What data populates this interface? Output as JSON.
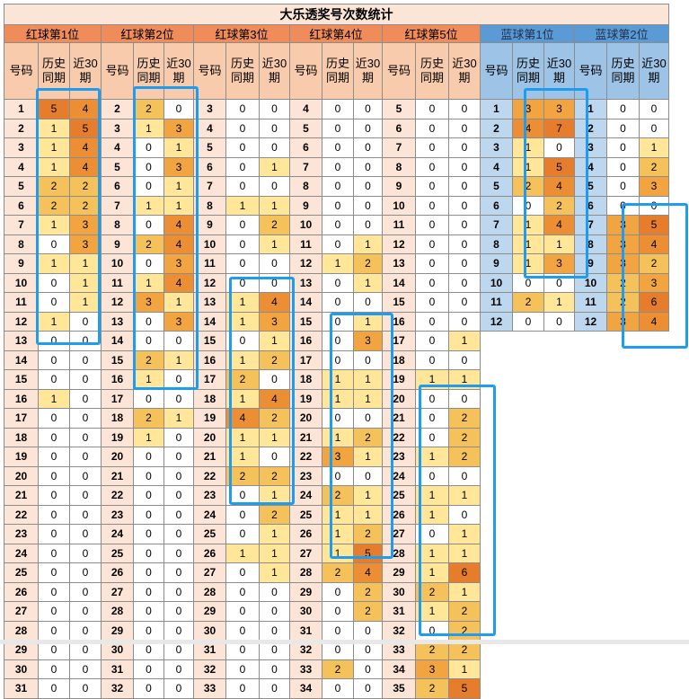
{
  "title": "大乐透奖号次数统计",
  "headers": {
    "code": "号码",
    "hist": "历史同期",
    "recent": "近30期"
  },
  "groups": [
    {
      "label": "红球第1位",
      "kind": "red",
      "rows": [
        [
          1,
          5,
          4
        ],
        [
          2,
          1,
          5
        ],
        [
          3,
          1,
          4
        ],
        [
          4,
          1,
          4
        ],
        [
          5,
          2,
          2
        ],
        [
          6,
          2,
          2
        ],
        [
          7,
          1,
          3
        ],
        [
          8,
          0,
          3
        ],
        [
          9,
          1,
          1
        ],
        [
          10,
          0,
          1
        ],
        [
          11,
          0,
          1
        ],
        [
          12,
          1,
          0
        ],
        [
          13,
          0,
          0
        ],
        [
          14,
          0,
          0
        ],
        [
          15,
          0,
          0
        ],
        [
          16,
          1,
          0
        ],
        [
          17,
          0,
          0
        ],
        [
          18,
          0,
          0
        ],
        [
          19,
          0,
          0
        ],
        [
          20,
          0,
          0
        ],
        [
          21,
          0,
          0
        ],
        [
          22,
          0,
          0
        ],
        [
          23,
          0,
          0
        ],
        [
          24,
          0,
          0
        ],
        [
          25,
          0,
          0
        ],
        [
          26,
          0,
          0
        ],
        [
          27,
          0,
          0
        ],
        [
          28,
          0,
          0
        ],
        [
          29,
          0,
          0
        ],
        [
          30,
          0,
          0
        ],
        [
          31,
          0,
          0
        ]
      ]
    },
    {
      "label": "红球第2位",
      "kind": "red",
      "rows": [
        [
          2,
          2,
          0
        ],
        [
          3,
          1,
          3
        ],
        [
          4,
          0,
          1
        ],
        [
          5,
          0,
          3
        ],
        [
          6,
          0,
          1
        ],
        [
          7,
          1,
          1
        ],
        [
          8,
          0,
          4
        ],
        [
          9,
          2,
          4
        ],
        [
          10,
          0,
          3
        ],
        [
          11,
          1,
          4
        ],
        [
          12,
          3,
          1
        ],
        [
          13,
          0,
          3
        ],
        [
          14,
          0,
          0
        ],
        [
          15,
          2,
          1
        ],
        [
          16,
          1,
          0
        ],
        [
          17,
          0,
          0
        ],
        [
          18,
          2,
          1
        ],
        [
          19,
          1,
          0
        ],
        [
          20,
          0,
          0
        ],
        [
          21,
          0,
          0
        ],
        [
          22,
          0,
          0
        ],
        [
          23,
          0,
          0
        ],
        [
          24,
          0,
          0
        ],
        [
          25,
          0,
          0
        ],
        [
          26,
          0,
          0
        ],
        [
          27,
          0,
          0
        ],
        [
          28,
          0,
          0
        ],
        [
          29,
          0,
          0
        ],
        [
          30,
          0,
          0
        ],
        [
          31,
          0,
          0
        ],
        [
          32,
          0,
          0
        ]
      ]
    },
    {
      "label": "红球第3位",
      "kind": "red",
      "rows": [
        [
          3,
          0,
          0
        ],
        [
          4,
          0,
          0
        ],
        [
          5,
          0,
          0
        ],
        [
          6,
          0,
          1
        ],
        [
          7,
          0,
          0
        ],
        [
          8,
          1,
          1
        ],
        [
          9,
          0,
          2
        ],
        [
          10,
          0,
          1
        ],
        [
          11,
          0,
          0
        ],
        [
          12,
          0,
          0
        ],
        [
          13,
          1,
          4
        ],
        [
          14,
          1,
          3
        ],
        [
          15,
          0,
          1
        ],
        [
          16,
          1,
          2
        ],
        [
          17,
          2,
          0
        ],
        [
          18,
          1,
          4
        ],
        [
          19,
          4,
          2
        ],
        [
          20,
          1,
          1
        ],
        [
          21,
          1,
          0
        ],
        [
          22,
          2,
          2
        ],
        [
          23,
          0,
          1
        ],
        [
          24,
          0,
          2
        ],
        [
          25,
          0,
          1
        ],
        [
          26,
          1,
          1
        ],
        [
          27,
          0,
          1
        ],
        [
          28,
          0,
          0
        ],
        [
          29,
          0,
          0
        ],
        [
          30,
          0,
          0
        ],
        [
          31,
          0,
          0
        ],
        [
          32,
          0,
          0
        ],
        [
          33,
          0,
          0
        ]
      ]
    },
    {
      "label": "红球第4位",
      "kind": "red",
      "rows": [
        [
          4,
          0,
          0
        ],
        [
          5,
          0,
          0
        ],
        [
          6,
          0,
          0
        ],
        [
          7,
          0,
          0
        ],
        [
          8,
          0,
          0
        ],
        [
          9,
          0,
          0
        ],
        [
          10,
          0,
          0
        ],
        [
          11,
          0,
          1
        ],
        [
          12,
          1,
          2
        ],
        [
          13,
          0,
          1
        ],
        [
          14,
          0,
          0
        ],
        [
          15,
          0,
          1
        ],
        [
          16,
          0,
          3
        ],
        [
          17,
          0,
          0
        ],
        [
          18,
          1,
          1
        ],
        [
          19,
          1,
          1
        ],
        [
          20,
          0,
          0
        ],
        [
          21,
          1,
          2
        ],
        [
          22,
          3,
          1
        ],
        [
          23,
          0,
          0
        ],
        [
          24,
          2,
          1
        ],
        [
          25,
          1,
          1
        ],
        [
          26,
          1,
          2
        ],
        [
          27,
          1,
          5
        ],
        [
          28,
          2,
          4
        ],
        [
          29,
          0,
          2
        ],
        [
          30,
          0,
          2
        ],
        [
          31,
          0,
          0
        ],
        [
          32,
          0,
          0
        ],
        [
          33,
          2,
          0
        ],
        [
          34,
          0,
          0
        ]
      ]
    },
    {
      "label": "红球第5位",
      "kind": "red",
      "rows": [
        [
          5,
          0,
          0
        ],
        [
          6,
          0,
          0
        ],
        [
          7,
          0,
          0
        ],
        [
          8,
          0,
          0
        ],
        [
          9,
          0,
          0
        ],
        [
          10,
          0,
          0
        ],
        [
          11,
          0,
          0
        ],
        [
          12,
          0,
          0
        ],
        [
          13,
          0,
          0
        ],
        [
          14,
          0,
          0
        ],
        [
          15,
          0,
          0
        ],
        [
          16,
          0,
          0
        ],
        [
          17,
          0,
          1
        ],
        [
          18,
          0,
          0
        ],
        [
          19,
          1,
          1
        ],
        [
          20,
          0,
          0
        ],
        [
          21,
          0,
          2
        ],
        [
          22,
          0,
          2
        ],
        [
          23,
          1,
          2
        ],
        [
          24,
          0,
          0
        ],
        [
          25,
          1,
          1
        ],
        [
          26,
          1,
          0
        ],
        [
          27,
          0,
          1
        ],
        [
          28,
          1,
          1
        ],
        [
          29,
          1,
          6
        ],
        [
          30,
          2,
          1
        ],
        [
          31,
          1,
          2
        ],
        [
          32,
          0,
          2
        ],
        [
          33,
          2,
          2
        ],
        [
          34,
          3,
          1
        ],
        [
          35,
          2,
          5
        ]
      ]
    },
    {
      "label": "蓝球第1位",
      "kind": "blue",
      "rows": [
        [
          1,
          3,
          3
        ],
        [
          2,
          4,
          7
        ],
        [
          3,
          1,
          0
        ],
        [
          4,
          1,
          5
        ],
        [
          5,
          2,
          4
        ],
        [
          6,
          0,
          2
        ],
        [
          7,
          1,
          4
        ],
        [
          8,
          1,
          1
        ],
        [
          9,
          1,
          3
        ],
        [
          10,
          0,
          0
        ],
        [
          11,
          2,
          1
        ],
        [
          12,
          0,
          0
        ]
      ]
    },
    {
      "label": "蓝球第2位",
      "kind": "blue",
      "rows": [
        [
          1,
          0,
          0
        ],
        [
          2,
          0,
          0
        ],
        [
          3,
          0,
          1
        ],
        [
          4,
          0,
          2
        ],
        [
          5,
          0,
          3
        ],
        [
          6,
          0,
          0
        ],
        [
          7,
          3,
          5
        ],
        [
          8,
          3,
          4
        ],
        [
          9,
          3,
          2
        ],
        [
          10,
          2,
          3
        ],
        [
          11,
          2,
          6
        ],
        [
          12,
          3,
          4
        ]
      ]
    }
  ],
  "highlight_color": "#1e9cf0"
}
